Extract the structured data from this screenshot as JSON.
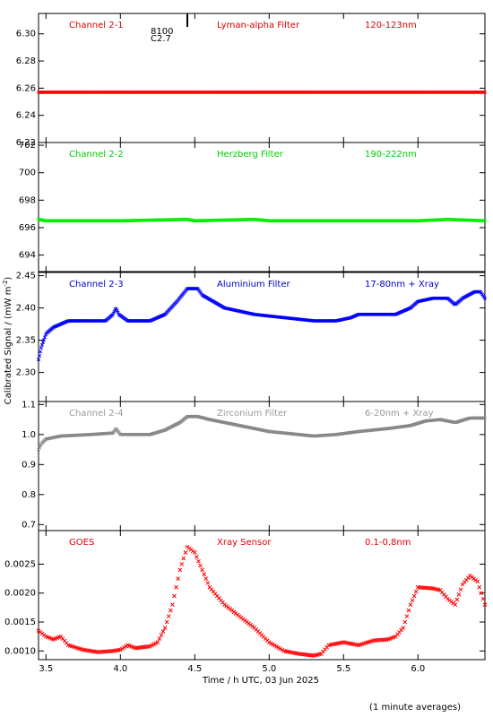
{
  "footnote": "(1 minute averages)",
  "ylabel_main": "Calibrated Signal / (mW m",
  "ylabel_sup": "-2",
  "ylabel_end": ")",
  "marker": {
    "top": "8100",
    "bottom": "C2.7"
  },
  "chart_data": {
    "type": "scatter",
    "xlabel": "Time / h UTC, 03 Jun 2025",
    "xlim": [
      3.45,
      6.45
    ],
    "xticks": [
      "3.5",
      "4.0",
      "4.5",
      "5.0",
      "5.5",
      "6.0"
    ],
    "panels": [
      {
        "name": "Channel 2-1",
        "filter": "Lyman-alpha Filter",
        "range": "120-123nm",
        "color": "#ff0000",
        "label_color": "#dd0000",
        "ylim": [
          6.22,
          6.315
        ],
        "yticks": [
          "6.22",
          "6.24",
          "6.26",
          "6.28",
          "6.30"
        ],
        "points": [
          [
            3.45,
            6.257
          ],
          [
            4.0,
            6.257
          ],
          [
            4.5,
            6.257
          ],
          [
            5.0,
            6.257
          ],
          [
            5.5,
            6.257
          ],
          [
            6.0,
            6.257
          ],
          [
            6.45,
            6.257
          ]
        ]
      },
      {
        "name": "Channel 2-2",
        "filter": "Herzberg Filter",
        "range": "190-222nm",
        "color": "#00ee00",
        "label_color": "#00cc00",
        "ylim": [
          692.8,
          702.2
        ],
        "yticks": [
          "694",
          "696",
          "698",
          "700",
          "702"
        ],
        "points": [
          [
            3.45,
            696.6
          ],
          [
            3.5,
            696.5
          ],
          [
            4.0,
            696.5
          ],
          [
            4.45,
            696.6
          ],
          [
            4.5,
            696.5
          ],
          [
            4.9,
            696.6
          ],
          [
            5.0,
            696.5
          ],
          [
            5.5,
            696.5
          ],
          [
            6.0,
            696.5
          ],
          [
            6.2,
            696.6
          ],
          [
            6.45,
            696.5
          ]
        ]
      },
      {
        "name": "Channel 2-3",
        "filter": "Aluminium Filter",
        "range": "17-80nm + Xray",
        "color": "#0000ff",
        "label_color": "#0000cc",
        "ylim": [
          2.255,
          2.455
        ],
        "yticks": [
          "2.30",
          "2.35",
          "2.40",
          "2.45"
        ],
        "points": [
          [
            3.45,
            2.32
          ],
          [
            3.47,
            2.34
          ],
          [
            3.5,
            2.36
          ],
          [
            3.55,
            2.37
          ],
          [
            3.65,
            2.38
          ],
          [
            3.75,
            2.38
          ],
          [
            3.9,
            2.38
          ],
          [
            3.95,
            2.39
          ],
          [
            3.97,
            2.4
          ],
          [
            3.99,
            2.39
          ],
          [
            4.05,
            2.38
          ],
          [
            4.2,
            2.38
          ],
          [
            4.3,
            2.39
          ],
          [
            4.38,
            2.41
          ],
          [
            4.45,
            2.43
          ],
          [
            4.52,
            2.43
          ],
          [
            4.55,
            2.42
          ],
          [
            4.7,
            2.4
          ],
          [
            4.9,
            2.39
          ],
          [
            5.1,
            2.385
          ],
          [
            5.3,
            2.38
          ],
          [
            5.45,
            2.38
          ],
          [
            5.55,
            2.385
          ],
          [
            5.6,
            2.39
          ],
          [
            5.75,
            2.39
          ],
          [
            5.85,
            2.39
          ],
          [
            5.95,
            2.4
          ],
          [
            6.0,
            2.41
          ],
          [
            6.1,
            2.415
          ],
          [
            6.2,
            2.415
          ],
          [
            6.25,
            2.405
          ],
          [
            6.3,
            2.415
          ],
          [
            6.38,
            2.425
          ],
          [
            6.42,
            2.425
          ],
          [
            6.45,
            2.415
          ]
        ]
      },
      {
        "name": "Channel 2-4",
        "filter": "Zirconium Filter",
        "range": "6-20nm + Xray",
        "color": "#888888",
        "label_color": "#999999",
        "ylim": [
          0.68,
          1.11
        ],
        "yticks": [
          "0.7",
          "0.8",
          "0.9",
          "1.0",
          "1.1"
        ],
        "points": [
          [
            3.45,
            0.95
          ],
          [
            3.47,
            0.97
          ],
          [
            3.5,
            0.985
          ],
          [
            3.6,
            0.995
          ],
          [
            3.8,
            1.0
          ],
          [
            3.95,
            1.005
          ],
          [
            3.97,
            1.02
          ],
          [
            4.0,
            1.0
          ],
          [
            4.2,
            1.0
          ],
          [
            4.3,
            1.015
          ],
          [
            4.4,
            1.04
          ],
          [
            4.45,
            1.06
          ],
          [
            4.52,
            1.06
          ],
          [
            4.6,
            1.05
          ],
          [
            4.8,
            1.03
          ],
          [
            5.0,
            1.01
          ],
          [
            5.2,
            1.0
          ],
          [
            5.3,
            0.995
          ],
          [
            5.45,
            1.0
          ],
          [
            5.6,
            1.01
          ],
          [
            5.8,
            1.02
          ],
          [
            5.95,
            1.03
          ],
          [
            6.05,
            1.045
          ],
          [
            6.15,
            1.05
          ],
          [
            6.2,
            1.045
          ],
          [
            6.25,
            1.04
          ],
          [
            6.35,
            1.055
          ],
          [
            6.45,
            1.055
          ]
        ]
      },
      {
        "name": "GOES",
        "filter": "Xray Sensor",
        "range": "0.1-0.8nm",
        "color": "#ff0000",
        "label_color": "#dd0000",
        "ylim": [
          0.00085,
          0.00308
        ],
        "yticks": [
          "0.0010",
          "0.0015",
          "0.0020",
          "0.0025"
        ],
        "points": [
          [
            3.45,
            0.00135
          ],
          [
            3.5,
            0.00125
          ],
          [
            3.55,
            0.0012
          ],
          [
            3.6,
            0.00125
          ],
          [
            3.65,
            0.0011
          ],
          [
            3.75,
            0.00102
          ],
          [
            3.85,
            0.00098
          ],
          [
            3.95,
            0.001
          ],
          [
            4.0,
            0.00102
          ],
          [
            4.05,
            0.0011
          ],
          [
            4.1,
            0.00105
          ],
          [
            4.2,
            0.00108
          ],
          [
            4.25,
            0.00115
          ],
          [
            4.3,
            0.0014
          ],
          [
            4.35,
            0.0018
          ],
          [
            4.4,
            0.0024
          ],
          [
            4.45,
            0.0028
          ],
          [
            4.5,
            0.0027
          ],
          [
            4.55,
            0.0024
          ],
          [
            4.6,
            0.0021
          ],
          [
            4.7,
            0.0018
          ],
          [
            4.8,
            0.0016
          ],
          [
            4.9,
            0.0014
          ],
          [
            5.0,
            0.00115
          ],
          [
            5.1,
            0.001
          ],
          [
            5.2,
            0.00095
          ],
          [
            5.3,
            0.00092
          ],
          [
            5.35,
            0.00095
          ],
          [
            5.4,
            0.0011
          ],
          [
            5.5,
            0.00115
          ],
          [
            5.6,
            0.0011
          ],
          [
            5.7,
            0.00118
          ],
          [
            5.8,
            0.0012
          ],
          [
            5.85,
            0.00125
          ],
          [
            5.9,
            0.0014
          ],
          [
            5.95,
            0.0018
          ],
          [
            6.0,
            0.0021
          ],
          [
            6.1,
            0.00208
          ],
          [
            6.15,
            0.00205
          ],
          [
            6.2,
            0.0019
          ],
          [
            6.25,
            0.0018
          ],
          [
            6.3,
            0.00215
          ],
          [
            6.35,
            0.0023
          ],
          [
            6.4,
            0.0022
          ],
          [
            6.45,
            0.0018
          ]
        ]
      }
    ]
  }
}
